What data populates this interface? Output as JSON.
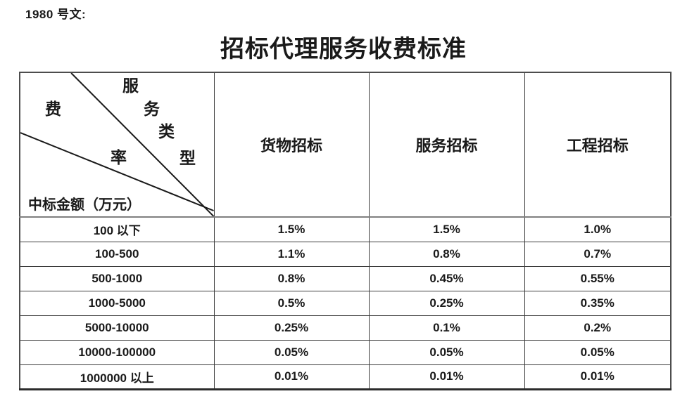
{
  "page": {
    "doc_ref": "1980 号文:",
    "title": "招标代理服务收费标准"
  },
  "table": {
    "corner": {
      "service_type_chars": [
        "服",
        "务",
        "类",
        "型"
      ],
      "rate_chars": [
        "费",
        "率"
      ],
      "amount_label": "中标金额（万元）"
    },
    "column_headers": [
      "货物招标",
      "服务招标",
      "工程招标"
    ],
    "rows": [
      {
        "range": "100 以下",
        "values": [
          "1.5%",
          "1.5%",
          "1.0%"
        ]
      },
      {
        "range": "100-500",
        "values": [
          "1.1%",
          "0.8%",
          "0.7%"
        ]
      },
      {
        "range": "500-1000",
        "values": [
          "0.8%",
          "0.45%",
          "0.55%"
        ]
      },
      {
        "range": "1000-5000",
        "values": [
          "0.5%",
          "0.25%",
          "0.35%"
        ]
      },
      {
        "range": "5000-10000",
        "values": [
          "0.25%",
          "0.1%",
          "0.2%"
        ]
      },
      {
        "range": "10000-100000",
        "values": [
          "0.05%",
          "0.05%",
          "0.05%"
        ]
      },
      {
        "range": "1000000 以上",
        "values": [
          "0.01%",
          "0.01%",
          "0.01%"
        ]
      }
    ]
  },
  "colors": {
    "text": "#1a1a1a",
    "border": "#3d3d3d",
    "background": "#ffffff"
  }
}
